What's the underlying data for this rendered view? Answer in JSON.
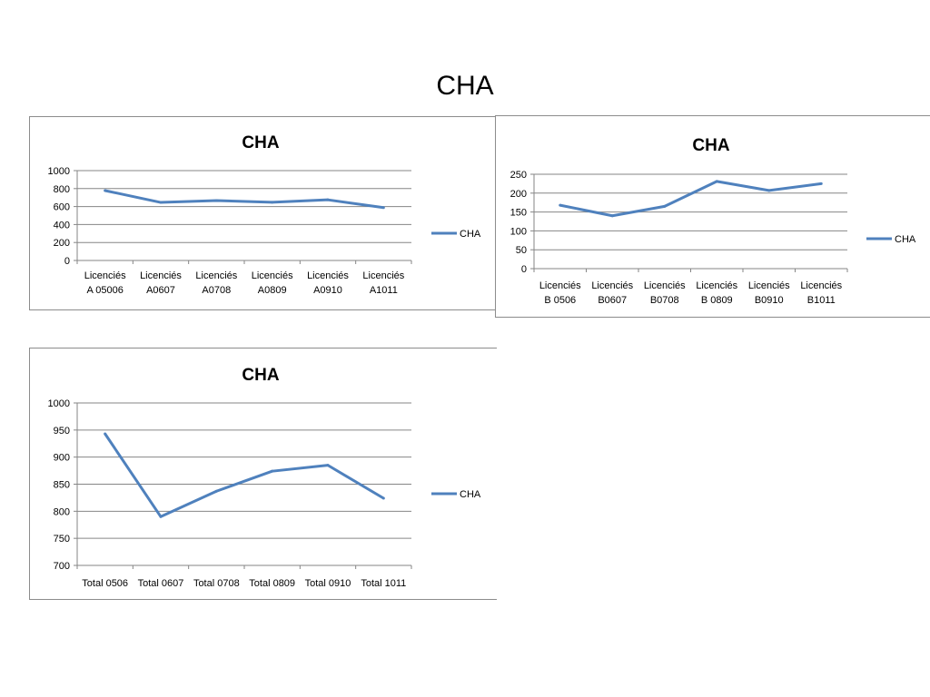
{
  "slide": {
    "title": "CHA"
  },
  "colors": {
    "series": "#4f81bd",
    "gridline": "#868686",
    "axis": "#868686",
    "text": "#000000"
  },
  "chart_data": [
    {
      "type": "line",
      "title": "CHA",
      "categories": [
        [
          "Licenciés",
          "A 05006"
        ],
        [
          "Licenciés",
          "A0607"
        ],
        [
          "Licenciés",
          "A0708"
        ],
        [
          "Licenciés",
          "A0809"
        ],
        [
          "Licenciés",
          "A0910"
        ],
        [
          "Licenciés",
          "A1011"
        ]
      ],
      "series": [
        {
          "name": "CHA",
          "values": [
            778,
            646,
            667,
            648,
            675,
            588
          ]
        }
      ],
      "ylim": [
        0,
        1000
      ],
      "yticks": [
        "0",
        "200",
        "400",
        "600",
        "800",
        "1000"
      ],
      "grid": true,
      "legend": "right"
    },
    {
      "type": "line",
      "title": "CHA",
      "categories": [
        [
          "Licenciés",
          "B 0506"
        ],
        [
          "Licenciés",
          "B0607"
        ],
        [
          "Licenciés",
          "B0708"
        ],
        [
          "Licenciés",
          "B 0809"
        ],
        [
          "Licenciés",
          "B0910"
        ],
        [
          "Licenciés",
          "B1011"
        ]
      ],
      "series": [
        {
          "name": "CHA",
          "values": [
            168,
            140,
            165,
            231,
            207,
            225
          ]
        }
      ],
      "ylim": [
        0,
        250
      ],
      "yticks": [
        "0",
        "50",
        "100",
        "150",
        "200",
        "250"
      ],
      "grid": true,
      "legend": "right"
    },
    {
      "type": "line",
      "title": "CHA",
      "categories": [
        [
          "Total 0506"
        ],
        [
          "Total 0607"
        ],
        [
          "Total 0708"
        ],
        [
          "Total 0809"
        ],
        [
          "Total 0910"
        ],
        [
          "Total 1011"
        ]
      ],
      "series": [
        {
          "name": "CHA",
          "values": [
            943,
            790,
            837,
            874,
            885,
            824
          ]
        }
      ],
      "ylim": [
        700,
        1000
      ],
      "yticks": [
        "700",
        "750",
        "800",
        "850",
        "900",
        "950",
        "1000"
      ],
      "grid": true,
      "legend": "right"
    }
  ]
}
